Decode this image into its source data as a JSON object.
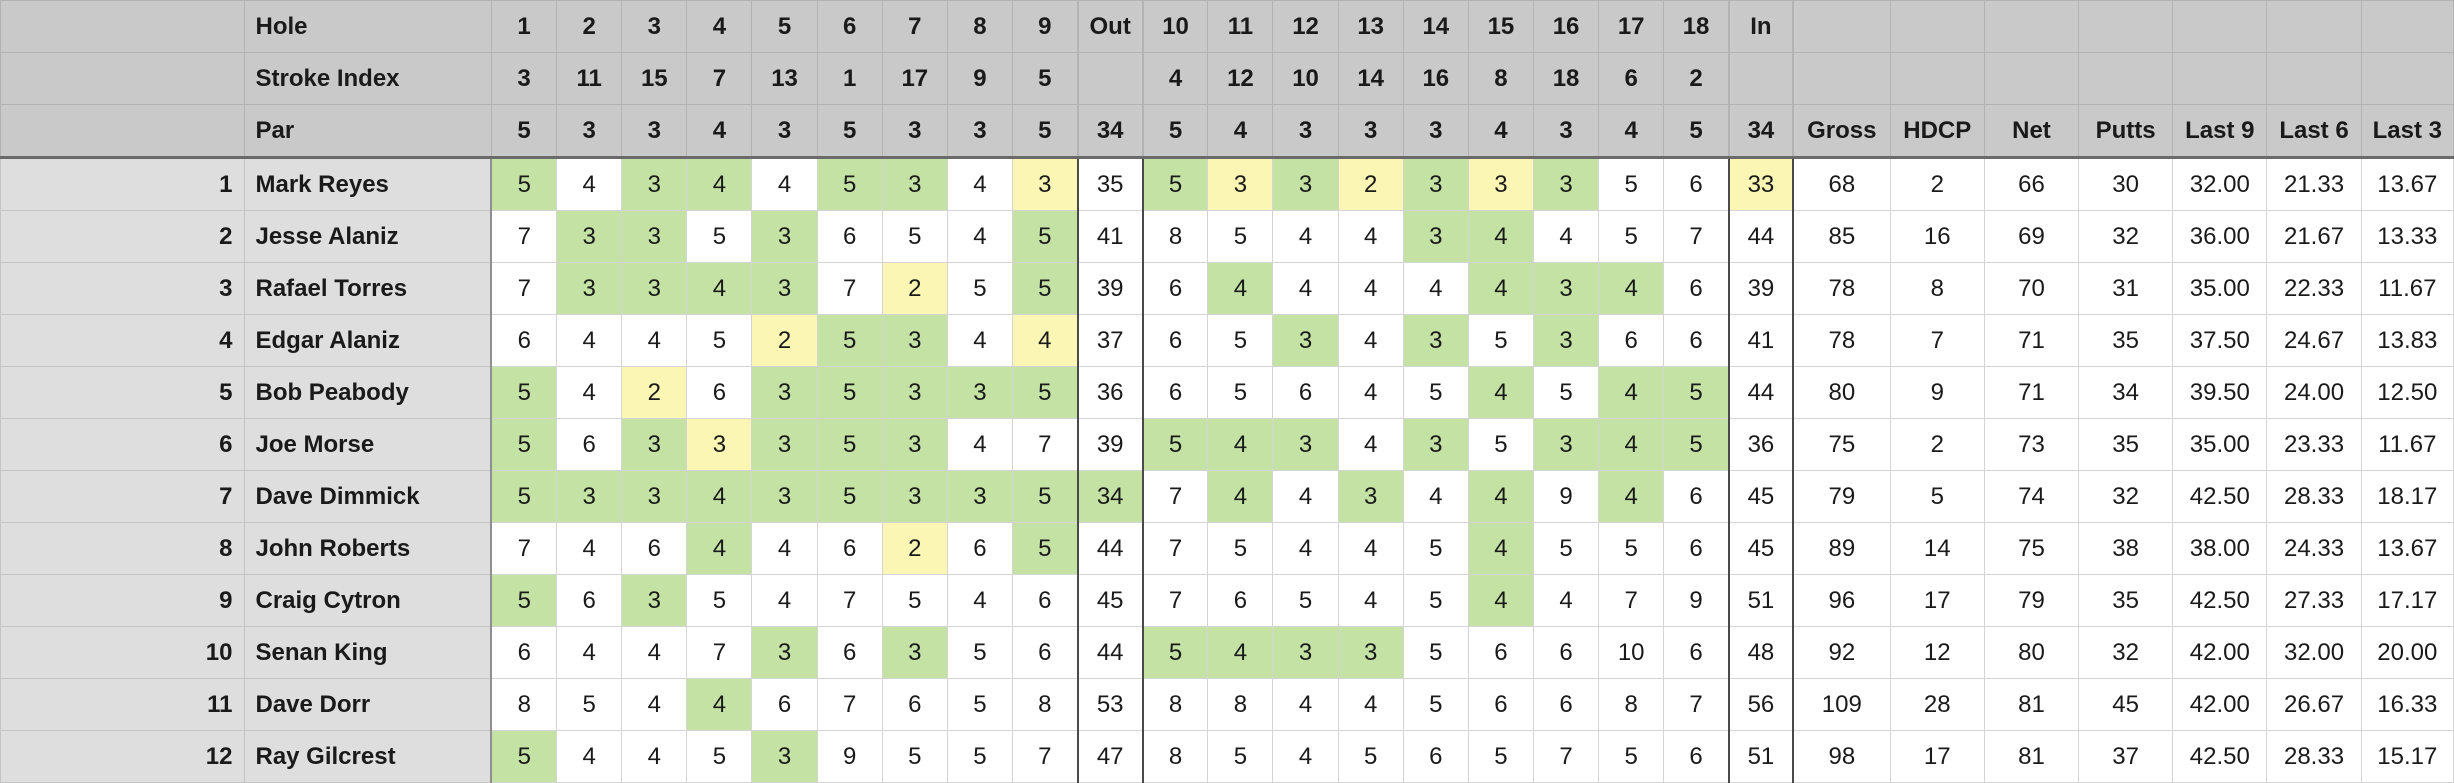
{
  "header": {
    "hole": [
      "Hole",
      "1",
      "2",
      "3",
      "4",
      "5",
      "6",
      "7",
      "8",
      "9",
      "Out",
      "10",
      "11",
      "12",
      "13",
      "14",
      "15",
      "16",
      "17",
      "18",
      "In",
      "",
      "",
      "",
      "",
      "",
      "",
      ""
    ],
    "stroke_index": [
      "Stroke Index",
      "3",
      "11",
      "15",
      "7",
      "13",
      "1",
      "17",
      "9",
      "5",
      "",
      "4",
      "12",
      "10",
      "14",
      "16",
      "8",
      "18",
      "6",
      "2",
      "",
      "",
      "",
      "",
      "",
      "",
      "",
      ""
    ],
    "par": [
      "Par",
      "5",
      "3",
      "3",
      "4",
      "3",
      "5",
      "3",
      "3",
      "5",
      "34",
      "5",
      "4",
      "3",
      "3",
      "3",
      "4",
      "3",
      "4",
      "5",
      "34",
      "Gross",
      "HDCP",
      "Net",
      "Putts",
      "Last 9",
      "Last 6",
      "Last 3"
    ]
  },
  "players": [
    {
      "rank": "1",
      "name": "Mark Reyes",
      "cells": [
        "5",
        "4",
        "3",
        "4",
        "4",
        "5",
        "3",
        "4",
        "3",
        "35",
        "5",
        "3",
        "3",
        "2",
        "3",
        "3",
        "3",
        "5",
        "6",
        "33",
        "68",
        "2",
        "66",
        "30",
        "32.00",
        "21.33",
        "13.67"
      ],
      "hl": "gggggwygggwywgygyggwwyggwgwwwwwww"
    },
    {
      "rank": "2",
      "name": "Jesse Alaniz",
      "cells": [
        "7",
        "3",
        "3",
        "5",
        "3",
        "6",
        "5",
        "4",
        "5",
        "41",
        "8",
        "5",
        "4",
        "4",
        "3",
        "4",
        "4",
        "5",
        "7",
        "44",
        "85",
        "16",
        "69",
        "32",
        "36.00",
        "21.67",
        "13.33"
      ],
      "hl": ""
    },
    {
      "rank": "3",
      "name": "Rafael Torres",
      "cells": [
        "7",
        "3",
        "3",
        "4",
        "3",
        "7",
        "2",
        "5",
        "5",
        "39",
        "6",
        "4",
        "4",
        "4",
        "4",
        "4",
        "3",
        "4",
        "6",
        "39",
        "78",
        "8",
        "70",
        "31",
        "35.00",
        "22.33",
        "11.67"
      ],
      "hl": ""
    },
    {
      "rank": "4",
      "name": "Edgar Alaniz",
      "cells": [
        "6",
        "4",
        "4",
        "5",
        "2",
        "5",
        "3",
        "4",
        "4",
        "37",
        "6",
        "5",
        "3",
        "4",
        "3",
        "5",
        "3",
        "6",
        "6",
        "41",
        "78",
        "7",
        "71",
        "35",
        "37.50",
        "24.67",
        "13.83"
      ],
      "hl": ""
    },
    {
      "rank": "5",
      "name": "Bob Peabody",
      "cells": [
        "5",
        "4",
        "2",
        "6",
        "3",
        "5",
        "3",
        "3",
        "5",
        "36",
        "6",
        "5",
        "6",
        "4",
        "5",
        "4",
        "5",
        "4",
        "5",
        "44",
        "80",
        "9",
        "71",
        "34",
        "39.50",
        "24.00",
        "12.50"
      ],
      "hl": ""
    },
    {
      "rank": "6",
      "name": "Joe Morse",
      "cells": [
        "5",
        "6",
        "3",
        "3",
        "3",
        "5",
        "3",
        "4",
        "7",
        "39",
        "5",
        "4",
        "3",
        "4",
        "3",
        "5",
        "3",
        "4",
        "5",
        "36",
        "75",
        "2",
        "73",
        "35",
        "35.00",
        "23.33",
        "11.67"
      ],
      "hl": ""
    },
    {
      "rank": "7",
      "name": "Dave Dimmick",
      "cells": [
        "5",
        "3",
        "3",
        "4",
        "3",
        "5",
        "3",
        "3",
        "5",
        "34",
        "7",
        "4",
        "4",
        "3",
        "4",
        "4",
        "9",
        "4",
        "6",
        "45",
        "79",
        "5",
        "74",
        "32",
        "42.50",
        "28.33",
        "18.17"
      ],
      "hl": ""
    },
    {
      "rank": "8",
      "name": "John Roberts",
      "cells": [
        "7",
        "4",
        "6",
        "4",
        "4",
        "6",
        "2",
        "6",
        "5",
        "44",
        "7",
        "5",
        "4",
        "4",
        "5",
        "4",
        "5",
        "5",
        "6",
        "45",
        "89",
        "14",
        "75",
        "38",
        "38.00",
        "24.33",
        "13.67"
      ],
      "hl": ""
    },
    {
      "rank": "9",
      "name": "Craig Cytron",
      "cells": [
        "5",
        "6",
        "3",
        "5",
        "4",
        "7",
        "5",
        "4",
        "6",
        "45",
        "7",
        "6",
        "5",
        "4",
        "5",
        "4",
        "4",
        "7",
        "9",
        "51",
        "96",
        "17",
        "79",
        "35",
        "42.50",
        "27.33",
        "17.17"
      ],
      "hl": ""
    },
    {
      "rank": "10",
      "name": "Senan King",
      "cells": [
        "6",
        "4",
        "4",
        "7",
        "3",
        "6",
        "3",
        "5",
        "6",
        "44",
        "5",
        "4",
        "3",
        "3",
        "5",
        "6",
        "6",
        "10",
        "6",
        "48",
        "92",
        "12",
        "80",
        "32",
        "42.00",
        "32.00",
        "20.00"
      ],
      "hl": ""
    },
    {
      "rank": "11",
      "name": "Dave Dorr",
      "cells": [
        "8",
        "5",
        "4",
        "4",
        "6",
        "7",
        "6",
        "5",
        "8",
        "53",
        "8",
        "8",
        "4",
        "4",
        "5",
        "6",
        "6",
        "8",
        "7",
        "56",
        "109",
        "28",
        "81",
        "45",
        "42.00",
        "26.67",
        "16.33"
      ],
      "hl": ""
    },
    {
      "rank": "12",
      "name": "Ray Gilcrest",
      "cells": [
        "5",
        "4",
        "4",
        "5",
        "3",
        "9",
        "5",
        "5",
        "7",
        "47",
        "8",
        "5",
        "4",
        "5",
        "6",
        "5",
        "7",
        "5",
        "6",
        "51",
        "98",
        "17",
        "81",
        "37",
        "42.50",
        "28.33",
        "15.17"
      ],
      "hl": ""
    }
  ],
  "highlights": [
    "g w g g w g g w y w g y g y g y g w w y",
    "w g g w g w w w g w w w w w g g w w w w",
    "w g g g g w y w g w w g w w w g g g w w",
    "w w w w y g g w y w w w g w g w g w w w",
    "g w y w g g g g g w w w w w w g w g g w",
    "g w g y g g g w w w g g g w g w g g g w",
    "g g g g g g g g g g w g w g w g w g w w",
    "w w w g w w y w g w w w w w w g w w w w",
    "g w g w w w w w w w w w w w w g w w w w",
    "w w w w g w g w w w g g g g w w w w w w",
    "w w w g w w w w w w w w w w w w w w w w",
    "g w w w g w w w w w w w w w w w w w w w"
  ],
  "colors": {
    "green": "#c3e2a4",
    "yellow": "#fbf6b4",
    "header_bg": "#c9c9c9",
    "label_bg": "#dedede"
  }
}
